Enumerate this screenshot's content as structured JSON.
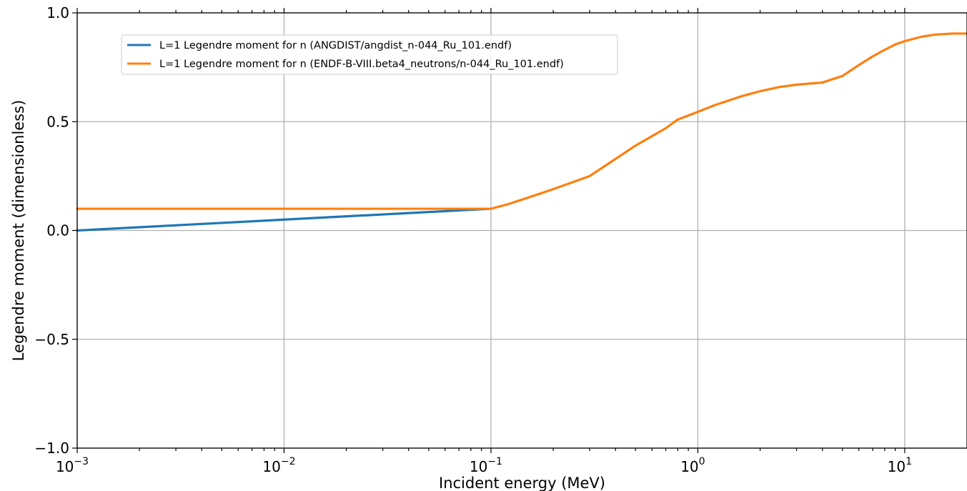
{
  "chart_data": {
    "type": "line",
    "title": "",
    "xlabel": "Incident energy (MeV)",
    "ylabel": "Legendre moment (dimensionless)",
    "xscale": "log",
    "xlim": [
      0.001,
      20
    ],
    "ylim": [
      -1.0,
      1.0
    ],
    "grid": true,
    "legend_position": "upper-left",
    "x_ticks": [
      {
        "value": 0.001,
        "base": "10",
        "exp": "−3"
      },
      {
        "value": 0.01,
        "base": "10",
        "exp": "−2"
      },
      {
        "value": 0.1,
        "base": "10",
        "exp": "−1"
      },
      {
        "value": 1,
        "base": "10",
        "exp": "0"
      },
      {
        "value": 10,
        "base": "10",
        "exp": "1"
      }
    ],
    "y_ticks": [
      {
        "value": -1.0,
        "label": "−1.0"
      },
      {
        "value": -0.5,
        "label": "−0.5"
      },
      {
        "value": 0.0,
        "label": "0.0"
      },
      {
        "value": 0.5,
        "label": "0.5"
      },
      {
        "value": 1.0,
        "label": "1.0"
      }
    ],
    "series": [
      {
        "name": "L=1 Legendre moment for n (ANGDIST/angdist_n-044_Ru_101.endf)",
        "color": "#1f77b4",
        "x": [
          0.001,
          0.1
        ],
        "y": [
          0.0,
          0.1
        ]
      },
      {
        "name": "L=1 Legendre moment for n (ENDF-B-VIII.beta4_neutrons/n-044_Ru_101.endf)",
        "color": "#ff7f0e",
        "x": [
          0.001,
          0.1,
          0.12,
          0.15,
          0.2,
          0.3,
          0.5,
          0.7,
          0.8,
          1.0,
          1.2,
          1.6,
          2.0,
          2.5,
          3.0,
          4.0,
          5.0,
          6.0,
          7.0,
          8.0,
          9.0,
          10.0,
          12.0,
          14.0,
          17.0,
          20.0
        ],
        "y": [
          0.1,
          0.1,
          0.12,
          0.15,
          0.19,
          0.25,
          0.39,
          0.47,
          0.51,
          0.545,
          0.575,
          0.615,
          0.64,
          0.66,
          0.67,
          0.68,
          0.71,
          0.76,
          0.8,
          0.83,
          0.855,
          0.87,
          0.89,
          0.9,
          0.905,
          0.905
        ]
      }
    ]
  }
}
